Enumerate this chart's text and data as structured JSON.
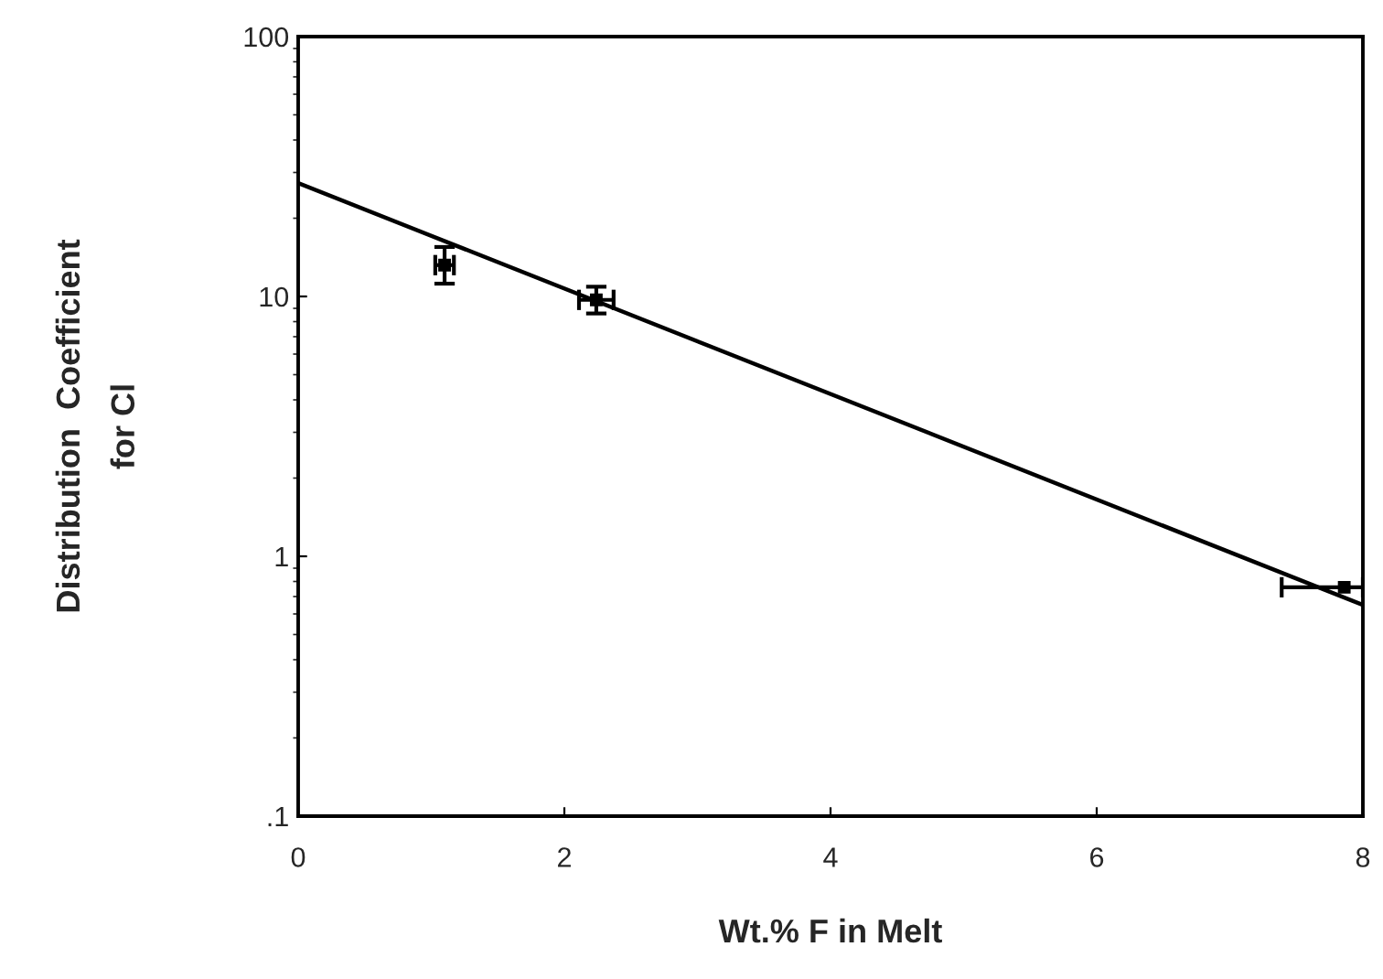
{
  "chart_data": {
    "type": "scatter",
    "xlabel": "Wt.% F in Melt",
    "ylabel": "Distribution  Coefficient\nfor Cl",
    "log": "y",
    "xlim": [
      0,
      8
    ],
    "xticks": [
      0,
      2,
      4,
      6,
      8
    ],
    "ylim": [
      0.1,
      100
    ],
    "yticks": [
      {
        "value": 0.1,
        "label": ".1"
      },
      1,
      10,
      100
    ],
    "grid": false,
    "legend": false,
    "series": [
      {
        "marker": "square",
        "color": "#000000",
        "x": [
          1.1,
          2.24,
          7.86
        ],
        "values": [
          13.2,
          9.7,
          0.76
        ],
        "errors": [
          [
            11.2,
            15.5
          ],
          [
            8.6,
            10.9
          ],
          null
        ],
        "xerrors": [
          0.07,
          0.13,
          [
            7.39,
            8.0
          ]
        ]
      },
      {
        "type": "line",
        "marker": "none",
        "color": "#000000",
        "x": [
          0,
          8
        ],
        "values": [
          27.3,
          0.65
        ]
      }
    ]
  }
}
